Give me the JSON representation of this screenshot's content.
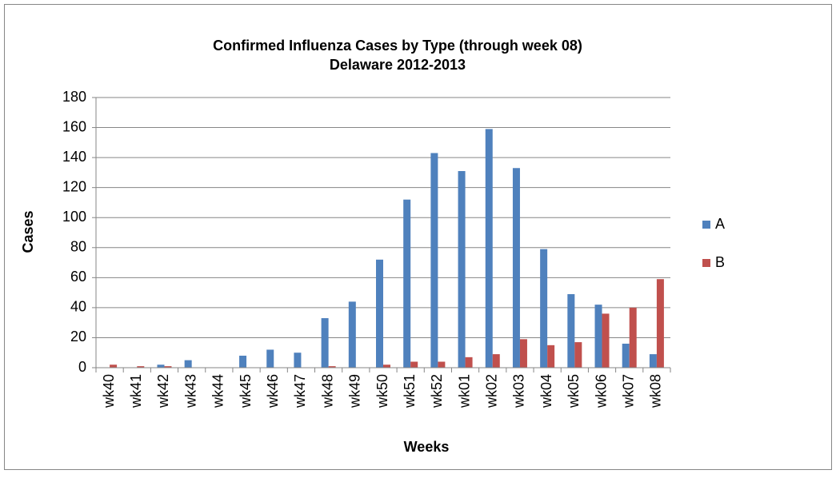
{
  "chart_data": {
    "type": "bar",
    "title": "Confirmed Influenza Cases by Type (through week 08)",
    "subtitle": "Delaware 2012-2013",
    "x_label": "Weeks",
    "y_label": "Cases",
    "categories": [
      "wk40",
      "wk41",
      "wk42",
      "wk43",
      "wk44",
      "wk45",
      "wk46",
      "wk47",
      "wk48",
      "wk49",
      "wk50",
      "wk51",
      "wk52",
      "wk01",
      "wk02",
      "wk03",
      "wk04",
      "wk05",
      "wk06",
      "wk07",
      "wk08"
    ],
    "series": [
      {
        "name": "A",
        "color": "#4f81bd",
        "values": [
          0,
          0,
          2,
          5,
          0,
          8,
          12,
          10,
          33,
          44,
          72,
          112,
          143,
          131,
          159,
          133,
          79,
          49,
          42,
          16,
          9
        ]
      },
      {
        "name": "B",
        "color": "#c0504d",
        "values": [
          2,
          1,
          1,
          0,
          0,
          0,
          0,
          0,
          1,
          0,
          2,
          4,
          4,
          7,
          9,
          19,
          15,
          17,
          36,
          40,
          59
        ]
      }
    ],
    "ylim": [
      0,
      180
    ],
    "yticks": [
      0,
      20,
      40,
      60,
      80,
      100,
      120,
      140,
      160,
      180
    ],
    "grid": true,
    "legend": "right"
  }
}
